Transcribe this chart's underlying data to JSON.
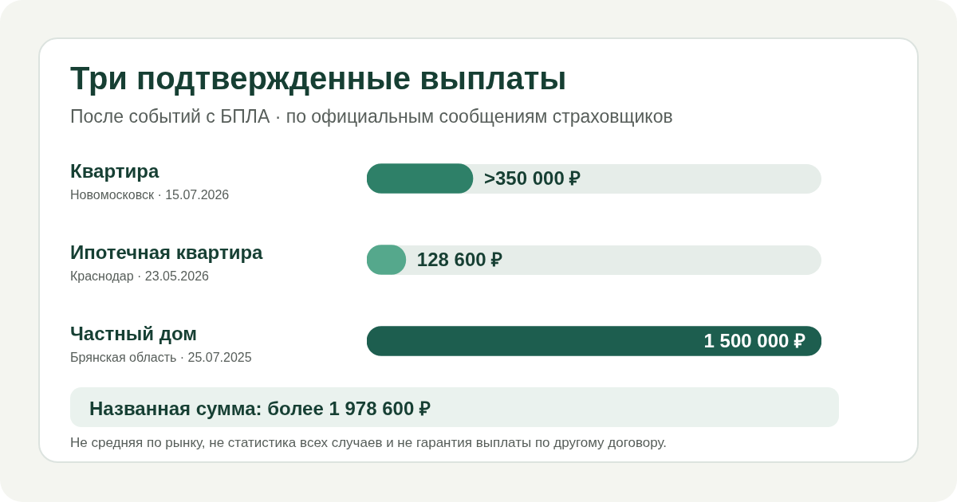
{
  "chart_data": {
    "type": "bar",
    "orientation": "horizontal",
    "title": "Три подтвержденные выплаты",
    "subtitle": "После событий с БПЛА · по официальным сообщениям страховщиков",
    "categories": [
      "Квартира\nНовомосковск · 15.07.2026",
      "Ипотечная квартира\nКраснодар · 23.05.2026",
      "Частный дом\nБрянская область · 25.07.2025"
    ],
    "values": [
      350000,
      128600,
      1500000
    ],
    "colors": [
      "#2e8068",
      "#55a88c",
      "#1d5e4f"
    ],
    "value_labels": [
      ">350 000 ₽",
      "128 600 ₽",
      "1 500 000 ₽"
    ],
    "xlim": [
      0,
      1500000
    ],
    "tick_labels": "y",
    "annotations": [
      "Названная сумма: более 1 978 600 ₽",
      "Не средняя по рынку, не статистика всех случаев и не гарантия выплаты по другому договору."
    ]
  }
}
